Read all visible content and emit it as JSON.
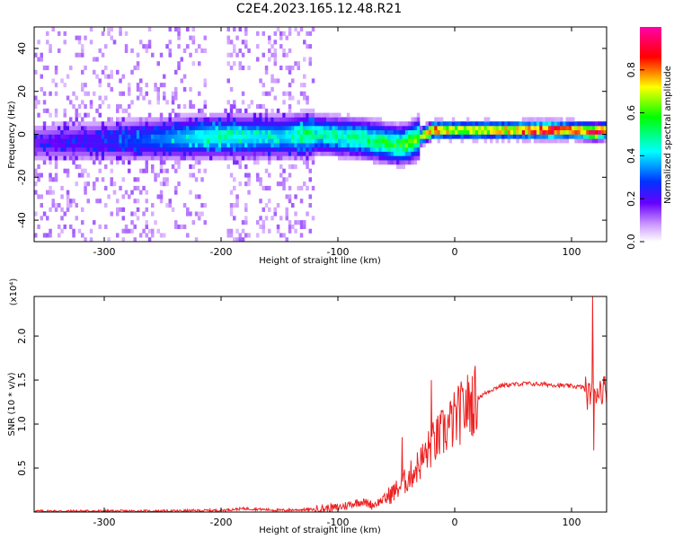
{
  "figure": {
    "title": "C2E4.2023.165.12.48.R21"
  },
  "chart_data": [
    {
      "type": "heatmap",
      "xlabel": "Height of straight line (km)",
      "ylabel": "Frequency (Hz)",
      "xlim": [
        -360,
        130
      ],
      "ylim": [
        -50,
        50
      ],
      "xticks": [
        -300,
        -200,
        -100,
        0,
        100
      ],
      "yticks": [
        -40,
        -20,
        0,
        20,
        40
      ],
      "colorbar": {
        "label": "Normalized spectral amplitude",
        "range": [
          0.0,
          1.0
        ],
        "ticks": [
          "0.0",
          "0.2",
          "0.4",
          "0.6",
          "0.8"
        ],
        "colors": [
          "#ffffff",
          "#6600ff",
          "#0033ff",
          "#00ffff",
          "#00ff00",
          "#ffff00",
          "#ff0000",
          "#ff00aa"
        ]
      },
      "ridge": {
        "x": [
          -360,
          -300,
          -250,
          -210,
          -150,
          -120,
          -80,
          -50,
          -40,
          -30,
          -20,
          0,
          40,
          80,
          100,
          120,
          130
        ],
        "freq": [
          -5,
          -4,
          -3,
          -2,
          -2,
          -1,
          -3,
          -6,
          -5,
          -2,
          1,
          1,
          1,
          1,
          1,
          0,
          1
        ],
        "amplitude": [
          0.15,
          0.2,
          0.3,
          0.4,
          0.35,
          0.45,
          0.5,
          0.55,
          0.6,
          0.6,
          0.85,
          0.7,
          0.75,
          0.95,
          0.8,
          0.9,
          0.8
        ]
      }
    },
    {
      "type": "line",
      "xlabel": "Height of straight line (km)",
      "ylabel": "SNR (10 * v/v)",
      "multiplier": "(x10⁴)",
      "xlim": [
        -360,
        130
      ],
      "ylim": [
        0,
        2.45
      ],
      "xticks": [
        -300,
        -200,
        -100,
        0,
        100
      ],
      "yticks": [
        0.5,
        1.0,
        1.5,
        2.0
      ],
      "yticklabels": [
        "0.5",
        "1.0",
        "1.5",
        "2.0"
      ],
      "color": "#ee2222",
      "series": [
        {
          "x": [
            -360,
            -300,
            -250,
            -200,
            -180,
            -150,
            -120,
            -100,
            -80,
            -70,
            -60,
            -50,
            -40,
            -30,
            -20,
            -10,
            0,
            10,
            20,
            30,
            40,
            60,
            80,
            100,
            110,
            115,
            118,
            120,
            125,
            130
          ],
          "values": [
            0.01,
            0.01,
            0.01,
            0.02,
            0.04,
            0.02,
            0.03,
            0.05,
            0.12,
            0.08,
            0.15,
            0.25,
            0.38,
            0.55,
            0.75,
            0.9,
            1.05,
            1.2,
            1.3,
            1.38,
            1.44,
            1.46,
            1.45,
            1.43,
            1.42,
            1.3,
            1.5,
            1.38,
            1.4,
            1.4
          ]
        }
      ],
      "spikes": [
        {
          "x": -20,
          "value": 1.5
        },
        {
          "x": -45,
          "value": 0.85
        },
        {
          "x": 118,
          "value": 2.45
        },
        {
          "x": 119,
          "value": 0.7
        }
      ]
    }
  ]
}
